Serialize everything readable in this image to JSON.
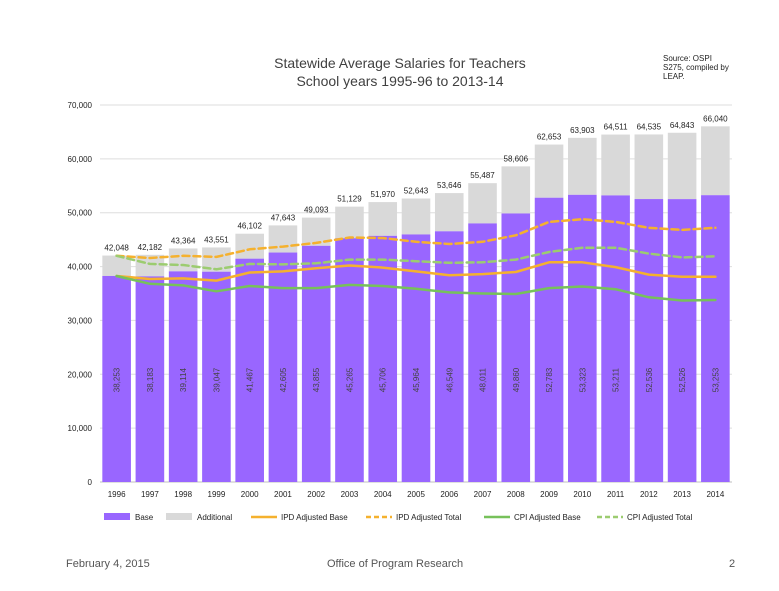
{
  "chart_data": {
    "type": "bar",
    "title": "Statewide Average Salaries for Teachers",
    "subtitle": "School years 1995-96 to 2013-14",
    "source_lines": [
      "Source: OSPI",
      "S275, compiled by",
      "LEAP."
    ],
    "categories": [
      "1996",
      "1997",
      "1998",
      "1999",
      "2000",
      "2001",
      "2002",
      "2003",
      "2004",
      "2005",
      "2006",
      "2007",
      "2008",
      "2009",
      "2010",
      "2011",
      "2012",
      "2013",
      "2014"
    ],
    "stacked": true,
    "ylim": [
      0,
      70000
    ],
    "yticks": [
      0,
      10000,
      20000,
      30000,
      40000,
      50000,
      60000,
      70000
    ],
    "ytick_labels": [
      "0",
      "10,000",
      "20,000",
      "30,000",
      "40,000",
      "50,000",
      "60,000",
      "70,000"
    ],
    "grid": true,
    "legend_position": "bottom",
    "bar_series": [
      {
        "name": "Base",
        "color": "#9966ff",
        "values": [
          38253,
          38183,
          39114,
          39047,
          41467,
          42605,
          43855,
          45265,
          45706,
          45964,
          46549,
          48011,
          49860,
          52783,
          53323,
          53211,
          52536,
          52526,
          53253
        ],
        "labels": [
          "38,253",
          "38,183",
          "39,114",
          "39,047",
          "41,467",
          "42,605",
          "43,855",
          "45,265",
          "45,706",
          "45,964",
          "46,549",
          "48,011",
          "49,860",
          "52,783",
          "53,323",
          "53,211",
          "52,536",
          "52,526",
          "53,253"
        ]
      },
      {
        "name": "Additional",
        "color": "#d9d9d9",
        "values": [
          3795,
          3999,
          4250,
          4504,
          4635,
          5038,
          5238,
          5864,
          6264,
          6679,
          7097,
          7476,
          8746,
          9870,
          10580,
          11300,
          11999,
          12317,
          12787
        ]
      }
    ],
    "totals": [
      42048,
      42182,
      43364,
      43551,
      46102,
      47643,
      49093,
      51129,
      51970,
      52643,
      53646,
      55487,
      58606,
      62653,
      63903,
      64511,
      64535,
      64843,
      66040
    ],
    "total_labels": [
      "42,048",
      "42,182",
      "43,364",
      "43,551",
      "46,102",
      "47,643",
      "49,093",
      "51,129",
      "51,970",
      "52,643",
      "53,646",
      "55,487",
      "58,606",
      "62,653",
      "63,903",
      "64,511",
      "64,535",
      "64,843",
      "66,040"
    ],
    "line_series": [
      {
        "name": "IPD Adjusted Base",
        "color": "#f5b12e",
        "dash": false,
        "values": [
          38250,
          37700,
          37800,
          37400,
          38900,
          39100,
          39700,
          40200,
          39800,
          39100,
          38400,
          38600,
          39000,
          40800,
          40800,
          39900,
          38500,
          38100,
          38100
        ]
      },
      {
        "name": "IPD Adjusted Total",
        "color": "#f5b12e",
        "dash": true,
        "values": [
          42000,
          41600,
          42000,
          41800,
          43200,
          43700,
          44400,
          45400,
          45300,
          44600,
          44200,
          44600,
          45800,
          48300,
          48800,
          48300,
          47200,
          46800,
          47200
        ]
      },
      {
        "name": "CPI Adjusted Base",
        "color": "#77c15a",
        "dash": false,
        "values": [
          38250,
          36800,
          36500,
          35400,
          36400,
          36000,
          36000,
          36600,
          36400,
          35900,
          35200,
          35000,
          34900,
          36000,
          36300,
          35800,
          34300,
          33700,
          33800
        ]
      },
      {
        "name": "CPI Adjusted Total",
        "color": "#9ccc70",
        "dash": true,
        "values": [
          42000,
          40500,
          40300,
          39500,
          40500,
          40400,
          40600,
          41300,
          41300,
          41000,
          40700,
          40800,
          41300,
          42700,
          43500,
          43500,
          42400,
          41700,
          41900
        ]
      }
    ]
  },
  "footer": {
    "date": "February 4, 2015",
    "office": "Office of Program Research",
    "page": "2"
  }
}
